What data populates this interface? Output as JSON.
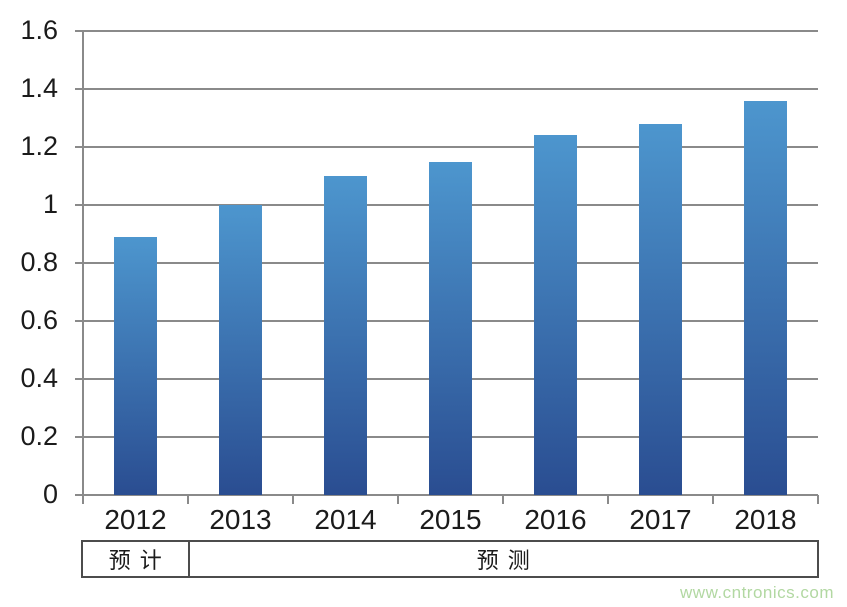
{
  "chart_data": {
    "type": "bar",
    "title": "",
    "xlabel": "",
    "ylabel": "",
    "categories": [
      "2012",
      "2013",
      "2014",
      "2015",
      "2016",
      "2017",
      "2018"
    ],
    "values": [
      0.89,
      1.0,
      1.1,
      1.15,
      1.24,
      1.28,
      1.36
    ],
    "ylim": [
      0,
      1.6
    ],
    "ytick_step": 0.2,
    "ytick_labels": [
      "0",
      "0.2",
      "0.4",
      "0.6",
      "0.8",
      "1",
      "1.2",
      "1.4",
      "1.6"
    ],
    "grid": true,
    "legend": false,
    "bar_color_top": "#4d96ce",
    "bar_color_bottom": "#2a4d91",
    "annotation_row": [
      {
        "label": "预计",
        "span": 1
      },
      {
        "label": "预测",
        "span": 6
      }
    ]
  },
  "colors": {
    "grid": "#8a8a8a",
    "axis": "#8a8a8a",
    "text": "#1b1b1b",
    "table_border": "#4c4c4c",
    "watermark": "#b2d8a2"
  },
  "watermark": {
    "text": "www.cntronics.com"
  }
}
